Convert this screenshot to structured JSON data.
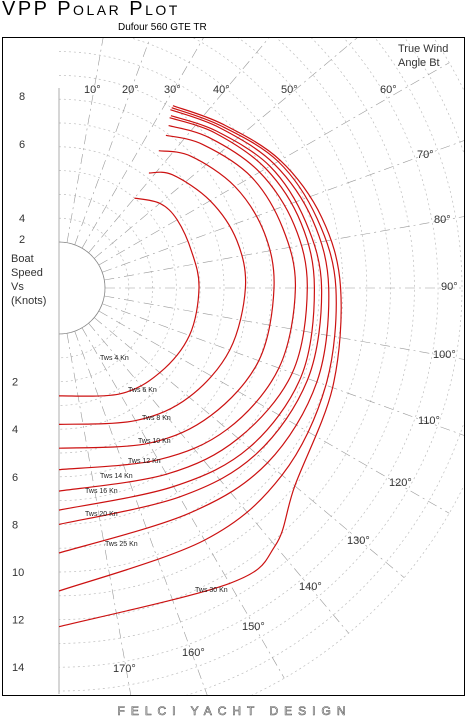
{
  "page": {
    "title": "VPP Polar Plot",
    "subtitle": "Dufour 560 GTE TR",
    "footer": "FELCI YACHT DESIGN"
  },
  "chart_data": {
    "type": "polar-line",
    "angle_label": [
      "True Wind",
      "Angle Bt"
    ],
    "speed_label": [
      "Boat",
      "Speed",
      "Vs",
      "(Knots)"
    ],
    "speed_ticks": [
      2,
      4,
      6,
      8,
      10,
      12,
      14
    ],
    "angle_ticks": [
      10,
      20,
      30,
      40,
      50,
      60,
      70,
      80,
      90,
      100,
      110,
      120,
      130,
      140,
      150,
      160,
      170
    ],
    "colors": {
      "curve": "#cc1111",
      "grid": "#bdbdbd",
      "spoke": "#9a9a9a"
    },
    "series": [
      {
        "name": "Tws 4 Kn",
        "angles": [
          40,
          50,
          60,
          75,
          90,
          110,
          130,
          150,
          180
        ],
        "speeds": [
          3.0,
          3.6,
          3.8,
          3.85,
          3.95,
          3.9,
          3.6,
          3.2,
          2.6
        ]
      },
      {
        "name": "Tws 6 Kn",
        "angles": [
          38,
          45,
          60,
          75,
          90,
          110,
          130,
          150,
          180
        ],
        "speeds": [
          4.2,
          4.8,
          5.4,
          5.8,
          5.9,
          5.7,
          5.2,
          4.5,
          3.8
        ]
      },
      {
        "name": "Tws 8 Kn",
        "angles": [
          36,
          45,
          60,
          75,
          90,
          110,
          130,
          150,
          180
        ],
        "speeds": [
          5.2,
          5.9,
          6.6,
          7.0,
          7.1,
          7.0,
          6.4,
          5.6,
          4.8
        ]
      },
      {
        "name": "Tws 10 Kn",
        "angles": [
          35,
          45,
          60,
          75,
          90,
          110,
          130,
          150,
          180
        ],
        "speeds": [
          5.9,
          6.6,
          7.4,
          7.8,
          8.0,
          7.9,
          7.3,
          6.4,
          5.7
        ]
      },
      {
        "name": "Tws 12 Kn",
        "angles": [
          34,
          45,
          60,
          75,
          90,
          110,
          130,
          150,
          180
        ],
        "speeds": [
          6.3,
          7.0,
          7.8,
          8.3,
          8.5,
          8.5,
          7.9,
          7.1,
          6.6
        ]
      },
      {
        "name": "Tws 14 Kn",
        "angles": [
          33,
          45,
          60,
          75,
          90,
          110,
          130,
          150,
          180
        ],
        "speeds": [
          6.6,
          7.3,
          8.1,
          8.6,
          8.8,
          8.9,
          8.5,
          7.7,
          7.4
        ]
      },
      {
        "name": "Tws 16 Kn",
        "angles": [
          33,
          45,
          60,
          75,
          90,
          110,
          130,
          150,
          180
        ],
        "speeds": [
          6.7,
          7.4,
          8.3,
          8.8,
          9.1,
          9.2,
          8.9,
          8.2,
          8.0
        ]
      },
      {
        "name": "Tws 20 Kn",
        "angles": [
          32,
          45,
          60,
          75,
          90,
          110,
          130,
          150,
          180
        ],
        "speeds": [
          6.9,
          7.6,
          8.5,
          9.1,
          9.4,
          9.6,
          9.5,
          9.0,
          9.2
        ]
      },
      {
        "name": "Tws 25 Kn",
        "angles": [
          32,
          45,
          60,
          75,
          90,
          110,
          130,
          150,
          180
        ],
        "speeds": [
          7.0,
          7.7,
          8.7,
          9.3,
          9.7,
          10.0,
          10.3,
          10.3,
          10.8
        ]
      },
      {
        "name": "Tws 30 Kn",
        "angles": [
          32,
          45,
          60,
          75,
          90,
          110,
          130,
          140,
          150,
          180
        ],
        "speeds": [
          7.1,
          7.8,
          8.8,
          9.5,
          9.9,
          10.3,
          11.0,
          12.2,
          12.4,
          12.3
        ]
      }
    ],
    "ylim": [
      0,
      15
    ]
  }
}
